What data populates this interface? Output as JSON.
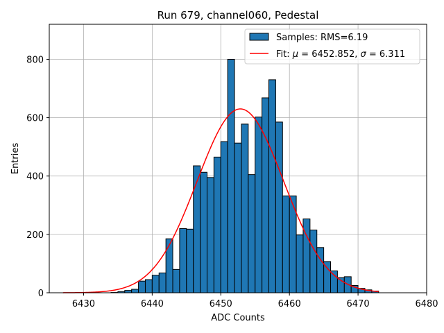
{
  "chart_data": {
    "type": "bar",
    "title": "Run 679, channel060, Pedestal",
    "xlabel": "ADC Counts",
    "ylabel": "Entries",
    "xlim": [
      6425,
      6480
    ],
    "ylim": [
      0,
      920
    ],
    "xticks": [
      6430,
      6440,
      6450,
      6460,
      6470,
      6480
    ],
    "yticks": [
      0,
      200,
      400,
      600,
      800
    ],
    "grid": true,
    "bar_color": "#1f77b4",
    "fit_color": "#ff0000",
    "histogram": {
      "name": "Samples: RMS=6.19",
      "bin_start": 6434,
      "bin_width": 1,
      "values": [
        1,
        4,
        8,
        12,
        40,
        45,
        60,
        68,
        185,
        80,
        220,
        218,
        435,
        413,
        395,
        465,
        518,
        800,
        513,
        578,
        405,
        602,
        668,
        730,
        585,
        332,
        332,
        198,
        253,
        215,
        155,
        107,
        75,
        52,
        55,
        25,
        15,
        10,
        6
      ]
    },
    "fit": {
      "name": "Fit: μ = 6452.852, σ = 6.311",
      "label_prefix": "Fit: ",
      "mu_symbol": "μ",
      "mu_text": " = 6452.852, ",
      "sigma_symbol": "σ",
      "sigma_text": " = 6.311",
      "mu": 6452.852,
      "sigma": 6.311,
      "amplitude": 630,
      "x_range": [
        6427,
        6473
      ]
    },
    "legend_position": "top-right"
  }
}
